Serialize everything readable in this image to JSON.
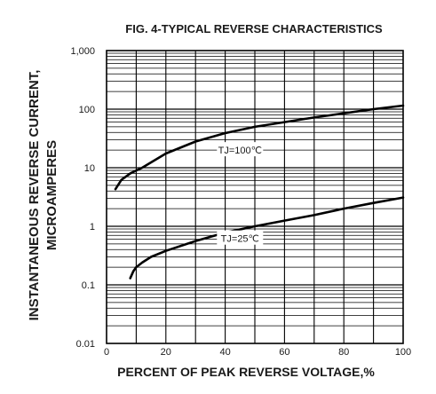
{
  "chart_data": {
    "type": "line",
    "title": "FIG. 4-TYPICAL REVERSE CHARACTERISTICS",
    "xlabel": "PERCENT OF PEAK REVERSE VOLTAGE,%",
    "ylabel_line1": "INSTANTANEOUS REVERSE CURRENT,",
    "ylabel_line2": "MICROAMPERES",
    "x_scale": "linear",
    "y_scale": "log",
    "xlim": [
      0,
      100
    ],
    "ylim": [
      0.01,
      1000
    ],
    "x_ticks": [
      0,
      20,
      40,
      60,
      80,
      100
    ],
    "x_tick_labels": [
      "0",
      "20",
      "40",
      "60",
      "80",
      "100"
    ],
    "y_ticks": [
      0.01,
      0.1,
      1,
      10,
      100,
      1000
    ],
    "y_tick_labels": [
      "0.01",
      "0.1",
      "1",
      "10",
      "100",
      "1,000"
    ],
    "grid": true,
    "series": [
      {
        "name": "TJ=100℃",
        "x": [
          3,
          5,
          8,
          12,
          20,
          30,
          40,
          50,
          60,
          70,
          80,
          90,
          100
        ],
        "y": [
          4.3,
          6.2,
          8.0,
          10.0,
          17.5,
          28,
          39,
          50,
          60,
          72,
          85,
          100,
          115
        ]
      },
      {
        "name": "TJ=25℃",
        "x": [
          8,
          9,
          10,
          12,
          15,
          20,
          30,
          40,
          50,
          60,
          70,
          80,
          90,
          100
        ],
        "y": [
          0.13,
          0.17,
          0.2,
          0.24,
          0.3,
          0.38,
          0.56,
          0.78,
          1.0,
          1.25,
          1.55,
          2.0,
          2.5,
          3.1
        ]
      }
    ]
  }
}
